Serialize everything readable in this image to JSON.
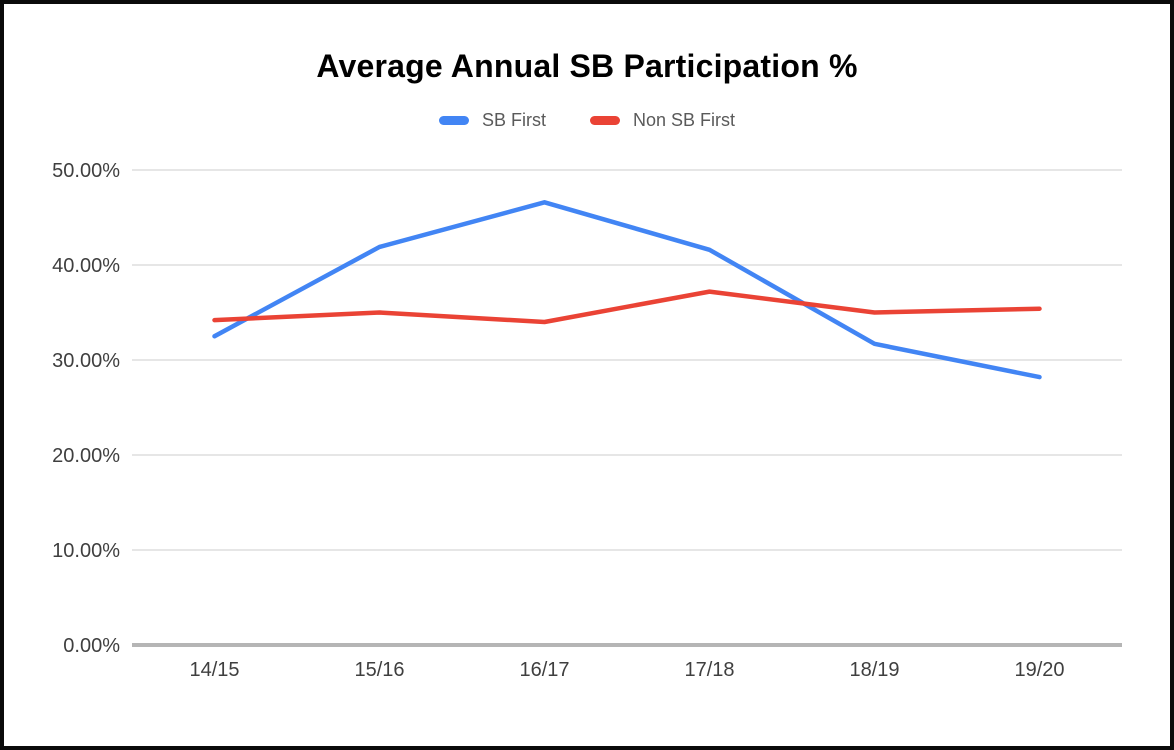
{
  "chart_data": {
    "type": "line",
    "title": "Average Annual SB Participation %",
    "categories": [
      "14/15",
      "15/16",
      "16/17",
      "17/18",
      "18/19",
      "19/20"
    ],
    "series": [
      {
        "name": "SB First",
        "color": "#4285F4",
        "values": [
          32.5,
          41.9,
          46.6,
          41.6,
          31.7,
          28.2
        ]
      },
      {
        "name": "Non SB First",
        "color": "#EA4335",
        "values": [
          34.2,
          35.0,
          34.0,
          37.2,
          35.0,
          35.4
        ]
      }
    ],
    "y_ticks": [
      "0.00%",
      "10.00%",
      "20.00%",
      "30.00%",
      "40.00%",
      "50.00%"
    ],
    "y_tick_values": [
      0,
      10,
      20,
      30,
      40,
      50
    ],
    "ylim": [
      0,
      50
    ],
    "grid": true,
    "legend_position": "top",
    "colors": {
      "gridline": "#e6e6e6",
      "axis_line": "#b5b5b5",
      "tick_label": "#3f3f3f",
      "legend_label": "#5a5a5a",
      "title": "#000000"
    }
  }
}
